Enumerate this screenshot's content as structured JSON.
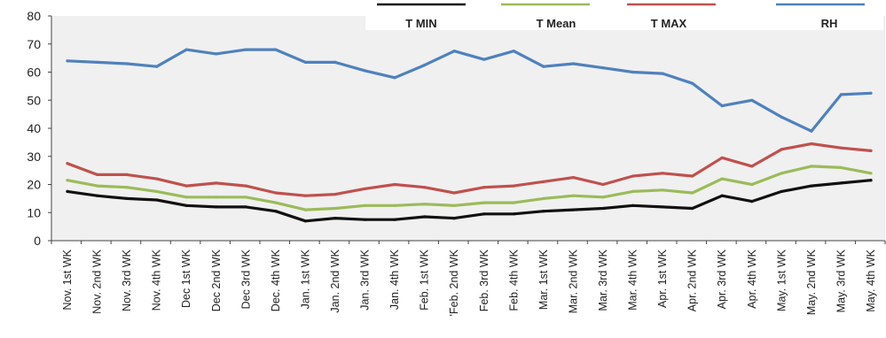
{
  "chart_data": {
    "type": "line",
    "title": "",
    "xlabel": "",
    "ylabel": "",
    "ylim": [
      0,
      80
    ],
    "yticks": [
      0,
      10,
      20,
      30,
      40,
      50,
      60,
      70,
      80
    ],
    "grid": false,
    "legend_position": "top",
    "categories": [
      "Nov. 1st WK",
      "Nov. 2nd WK",
      "Nov. 3rd WK",
      "Nov. 4th WK",
      "Dec 1st WK",
      "Dec 2nd WK",
      "Dec 3rd WK",
      "Dec. 4th WK",
      "Jan. 1st WK",
      "Jan. 2nd WK",
      "Jan. 3rd WK",
      "Jan. 4th WK",
      "Feb. 1st WK",
      "'Feb. 2nd WK",
      "Feb. 3rd WK",
      "Feb. 4th WK",
      "Mar. 1st WK",
      "Mar. 2nd WK",
      "Mar. 3rd WK",
      "Mar. 4th WK",
      "Apr. 1st WK",
      "Apr. 2nd WK",
      "Apr. 3rd WK",
      "Apr. 4th WK",
      "May. 1st WK",
      "May. 2nd WK",
      "May. 3rd WK",
      "May. 4th WK"
    ],
    "series": [
      {
        "name": "T MIN",
        "color": "#111111",
        "values": [
          17.5,
          16,
          15,
          14.5,
          12.5,
          12,
          12,
          10.5,
          7,
          8,
          7.5,
          7.5,
          8.5,
          8,
          9.5,
          9.5,
          10.5,
          11,
          11.5,
          12.5,
          12,
          11.5,
          16,
          14,
          17.5,
          19.5,
          20.5,
          21.5
        ]
      },
      {
        "name": "T Mean",
        "color": "#9bbb59",
        "values": [
          21.5,
          19.5,
          19,
          17.5,
          15.5,
          15.5,
          15.5,
          13.5,
          11,
          11.5,
          12.5,
          12.5,
          13,
          12.5,
          13.5,
          13.5,
          15,
          16,
          15.5,
          17.5,
          18,
          17,
          22,
          20,
          24,
          26.5,
          26,
          24
        ]
      },
      {
        "name": "T MAX",
        "color": "#c0504d",
        "values": [
          27.5,
          23.5,
          23.5,
          22,
          19.5,
          20.5,
          19.5,
          17,
          16,
          16.5,
          18.5,
          20,
          19,
          17,
          19,
          19.5,
          21,
          22.5,
          20,
          23,
          24,
          23,
          29.5,
          26.5,
          32.5,
          34.5,
          33,
          32
        ]
      },
      {
        "name": "RH",
        "color": "#4f81bd",
        "values": [
          64,
          63.5,
          63,
          62,
          68,
          66.5,
          68,
          68,
          63.5,
          63.5,
          60.5,
          58,
          62.5,
          67.5,
          64.5,
          67.5,
          62,
          63,
          61.5,
          60,
          59.5,
          56,
          48,
          50,
          44,
          39,
          52,
          52.5
        ]
      }
    ]
  }
}
